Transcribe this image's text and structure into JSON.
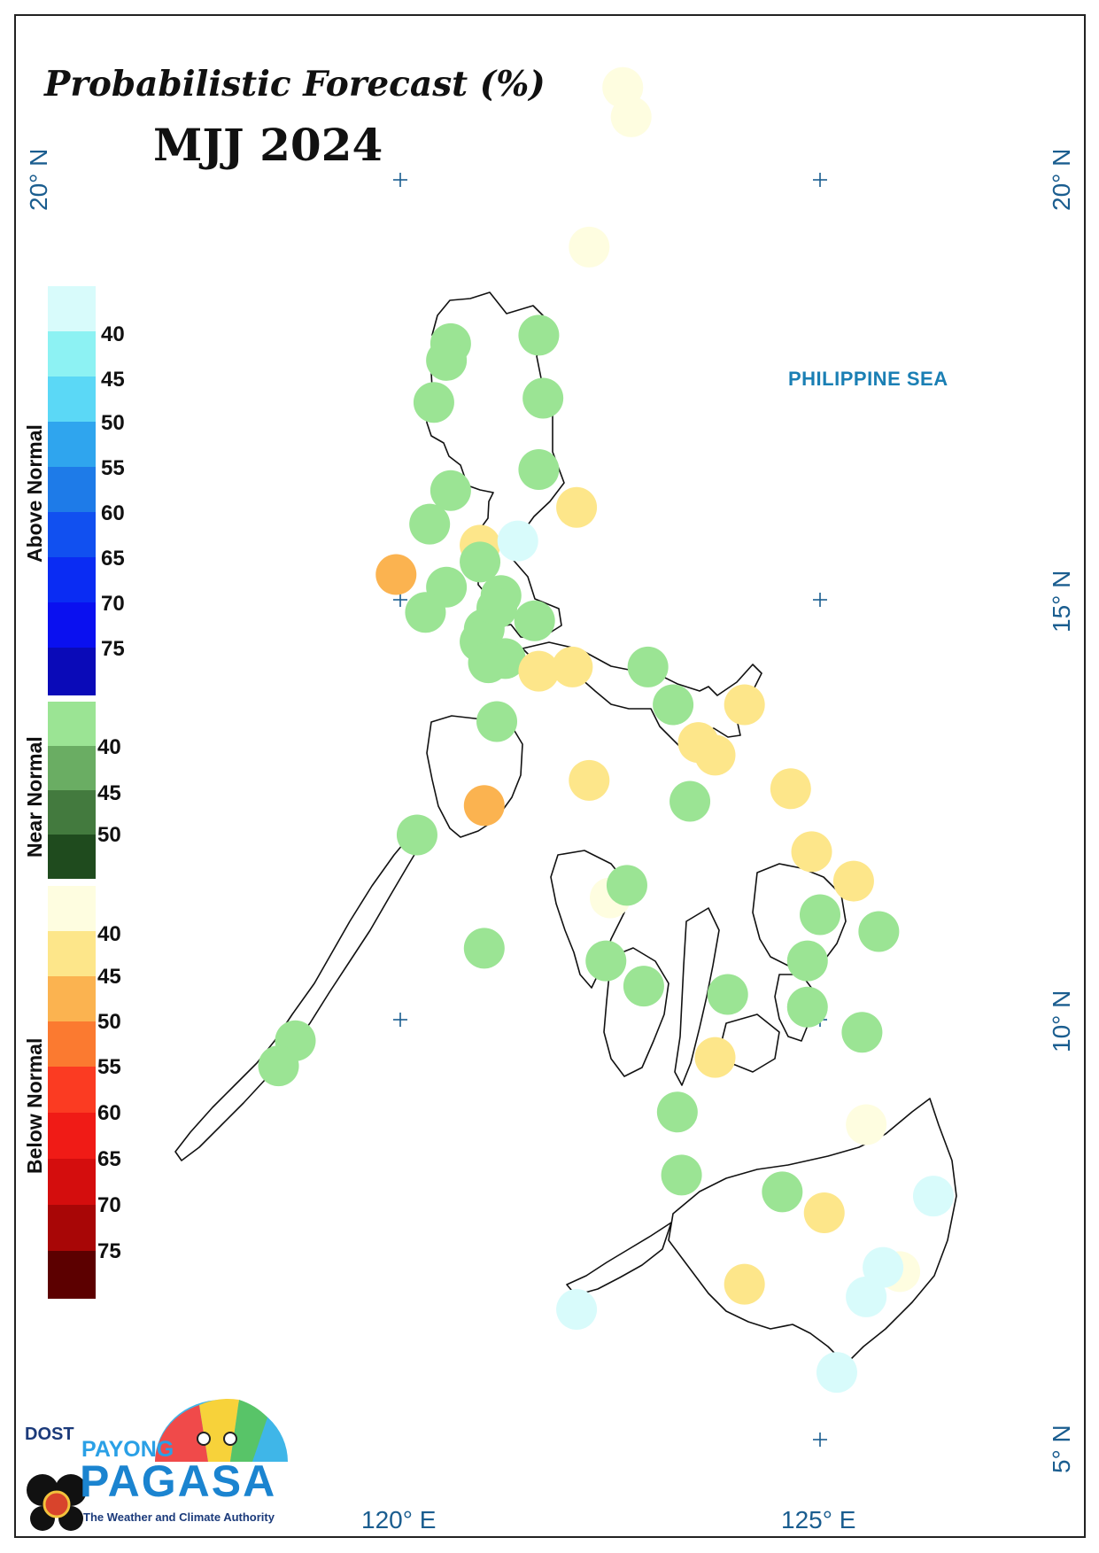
{
  "title": "Probabilistic Forecast (%)",
  "period": "MJJ 2024",
  "sea_label": "PHILIPPINE SEA",
  "lat_labels": [
    "20° N",
    "15° N",
    "10° N",
    "5° N"
  ],
  "lon_labels": [
    "120° E",
    "125° E"
  ],
  "legend": {
    "above_normal": {
      "label": "Above Normal",
      "ticks": [
        "40",
        "45",
        "50",
        "55",
        "60",
        "65",
        "70",
        "75"
      ],
      "colors": [
        "#d8fbfb",
        "#8df2f3",
        "#5bd8f6",
        "#2fa5ee",
        "#1e7be8",
        "#1150f0",
        "#0a2cf3",
        "#0a10f0",
        "#0a0ab8"
      ]
    },
    "near_normal": {
      "label": "Near Normal",
      "ticks": [
        "40",
        "45",
        "50"
      ],
      "colors": [
        "#9be494",
        "#6aad63",
        "#437a3e",
        "#1f4b1e"
      ]
    },
    "below_normal": {
      "label": "Below Normal",
      "ticks": [
        "40",
        "45",
        "50",
        "55",
        "60",
        "65",
        "70",
        "75"
      ],
      "colors": [
        "#fefde0",
        "#fde68a",
        "#fbb350",
        "#fb7a30",
        "#fb3b22",
        "#f01b16",
        "#d40d0d",
        "#a80606",
        "#5c0000"
      ]
    }
  },
  "stations": [
    {
      "lon": 122.65,
      "lat": 21.1,
      "category": "below",
      "color": "#fefde0"
    },
    {
      "lon": 122.75,
      "lat": 20.75,
      "category": "below",
      "color": "#fefde0"
    },
    {
      "lon": 122.25,
      "lat": 19.2,
      "category": "below",
      "color": "#fefde0"
    },
    {
      "lon": 120.6,
      "lat": 18.05,
      "category": "near",
      "color": "#9be494"
    },
    {
      "lon": 120.55,
      "lat": 17.85,
      "category": "near",
      "color": "#9be494"
    },
    {
      "lon": 121.65,
      "lat": 18.15,
      "category": "near",
      "color": "#9be494"
    },
    {
      "lon": 120.4,
      "lat": 17.35,
      "category": "near",
      "color": "#9be494"
    },
    {
      "lon": 121.7,
      "lat": 17.4,
      "category": "near",
      "color": "#9be494"
    },
    {
      "lon": 121.65,
      "lat": 16.55,
      "category": "near",
      "color": "#9be494"
    },
    {
      "lon": 120.6,
      "lat": 16.3,
      "category": "near",
      "color": "#9be494"
    },
    {
      "lon": 122.1,
      "lat": 16.1,
      "category": "below",
      "color": "#fde68a"
    },
    {
      "lon": 120.35,
      "lat": 15.9,
      "category": "near",
      "color": "#9be494"
    },
    {
      "lon": 120.95,
      "lat": 15.65,
      "category": "below",
      "color": "#fde68a"
    },
    {
      "lon": 121.4,
      "lat": 15.7,
      "category": "above",
      "color": "#d8fbfb"
    },
    {
      "lon": 120.95,
      "lat": 15.45,
      "category": "near",
      "color": "#9be494"
    },
    {
      "lon": 119.95,
      "lat": 15.3,
      "category": "below",
      "color": "#fbb350"
    },
    {
      "lon": 120.55,
      "lat": 15.15,
      "category": "near",
      "color": "#9be494"
    },
    {
      "lon": 121.2,
      "lat": 15.05,
      "category": "near",
      "color": "#9be494"
    },
    {
      "lon": 121.15,
      "lat": 14.9,
      "category": "near",
      "color": "#9be494"
    },
    {
      "lon": 120.3,
      "lat": 14.85,
      "category": "near",
      "color": "#9be494"
    },
    {
      "lon": 121.6,
      "lat": 14.75,
      "category": "near",
      "color": "#9be494"
    },
    {
      "lon": 121.0,
      "lat": 14.65,
      "category": "near",
      "color": "#9be494"
    },
    {
      "lon": 120.95,
      "lat": 14.5,
      "category": "near",
      "color": "#9be494"
    },
    {
      "lon": 121.25,
      "lat": 14.3,
      "category": "near",
      "color": "#9be494"
    },
    {
      "lon": 121.05,
      "lat": 14.25,
      "category": "near",
      "color": "#9be494"
    },
    {
      "lon": 121.65,
      "lat": 14.15,
      "category": "below",
      "color": "#fde68a"
    },
    {
      "lon": 122.05,
      "lat": 14.2,
      "category": "below",
      "color": "#fde68a"
    },
    {
      "lon": 122.95,
      "lat": 14.2,
      "category": "near",
      "color": "#9be494"
    },
    {
      "lon": 121.15,
      "lat": 13.55,
      "category": "near",
      "color": "#9be494"
    },
    {
      "lon": 123.25,
      "lat": 13.75,
      "category": "near",
      "color": "#9be494"
    },
    {
      "lon": 124.1,
      "lat": 13.75,
      "category": "below",
      "color": "#fde68a"
    },
    {
      "lon": 123.55,
      "lat": 13.3,
      "category": "below",
      "color": "#fde68a"
    },
    {
      "lon": 123.75,
      "lat": 13.15,
      "category": "below",
      "color": "#fde68a"
    },
    {
      "lon": 122.25,
      "lat": 12.85,
      "category": "below",
      "color": "#fde68a"
    },
    {
      "lon": 121.0,
      "lat": 12.55,
      "category": "below",
      "color": "#fbb350"
    },
    {
      "lon": 123.45,
      "lat": 12.6,
      "category": "near",
      "color": "#9be494"
    },
    {
      "lon": 124.65,
      "lat": 12.75,
      "category": "below",
      "color": "#fde68a"
    },
    {
      "lon": 120.2,
      "lat": 12.2,
      "category": "near",
      "color": "#9be494"
    },
    {
      "lon": 124.9,
      "lat": 12.0,
      "category": "below",
      "color": "#fde68a"
    },
    {
      "lon": 125.4,
      "lat": 11.65,
      "category": "below",
      "color": "#fde68a"
    },
    {
      "lon": 122.5,
      "lat": 11.45,
      "category": "below",
      "color": "#fefde0"
    },
    {
      "lon": 122.7,
      "lat": 11.6,
      "category": "near",
      "color": "#9be494"
    },
    {
      "lon": 125.0,
      "lat": 11.25,
      "category": "near",
      "color": "#9be494"
    },
    {
      "lon": 125.7,
      "lat": 11.05,
      "category": "near",
      "color": "#9be494"
    },
    {
      "lon": 121.0,
      "lat": 10.85,
      "category": "near",
      "color": "#9be494"
    },
    {
      "lon": 122.45,
      "lat": 10.7,
      "category": "near",
      "color": "#9be494"
    },
    {
      "lon": 124.85,
      "lat": 10.7,
      "category": "near",
      "color": "#9be494"
    },
    {
      "lon": 122.9,
      "lat": 10.4,
      "category": "near",
      "color": "#9be494"
    },
    {
      "lon": 123.9,
      "lat": 10.3,
      "category": "near",
      "color": "#9be494"
    },
    {
      "lon": 124.85,
      "lat": 10.15,
      "category": "near",
      "color": "#9be494"
    },
    {
      "lon": 125.5,
      "lat": 9.85,
      "category": "near",
      "color": "#9be494"
    },
    {
      "lon": 118.75,
      "lat": 9.75,
      "category": "near",
      "color": "#9be494"
    },
    {
      "lon": 118.55,
      "lat": 9.45,
      "category": "near",
      "color": "#9be494"
    },
    {
      "lon": 123.75,
      "lat": 9.55,
      "category": "below",
      "color": "#fde68a"
    },
    {
      "lon": 123.3,
      "lat": 8.9,
      "category": "near",
      "color": "#9be494"
    },
    {
      "lon": 125.55,
      "lat": 8.75,
      "category": "below",
      "color": "#fefde0"
    },
    {
      "lon": 123.35,
      "lat": 8.15,
      "category": "near",
      "color": "#9be494"
    },
    {
      "lon": 124.55,
      "lat": 7.95,
      "category": "near",
      "color": "#9be494"
    },
    {
      "lon": 126.35,
      "lat": 7.9,
      "category": "above",
      "color": "#d8fbfb"
    },
    {
      "lon": 125.05,
      "lat": 7.7,
      "category": "below",
      "color": "#fde68a"
    },
    {
      "lon": 125.95,
      "lat": 7.0,
      "category": "below",
      "color": "#fefde0"
    },
    {
      "lon": 125.75,
      "lat": 7.05,
      "category": "above",
      "color": "#d8fbfb"
    },
    {
      "lon": 124.1,
      "lat": 6.85,
      "category": "below",
      "color": "#fde68a"
    },
    {
      "lon": 125.55,
      "lat": 6.7,
      "category": "above",
      "color": "#d8fbfb"
    },
    {
      "lon": 122.1,
      "lat": 6.55,
      "category": "above",
      "color": "#d8fbfb"
    },
    {
      "lon": 125.2,
      "lat": 5.8,
      "category": "above",
      "color": "#d8fbfb"
    }
  ],
  "logo": {
    "dost": "DOST",
    "payong": "PAYONG",
    "pagasa": "PAGASA",
    "tagline": "The Weather and Climate Authority"
  }
}
